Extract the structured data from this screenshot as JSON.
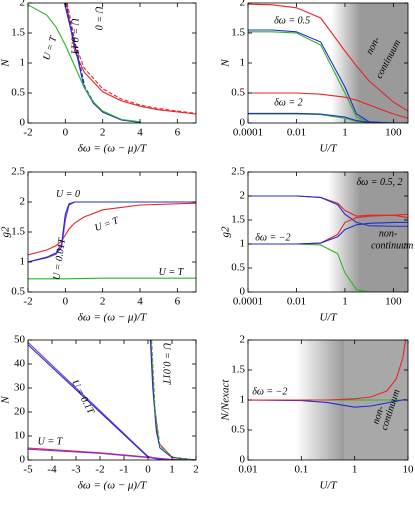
{
  "chart_data": [
    {
      "type": "line",
      "xlabel": "δω = (ω − μ)/T",
      "ylabel": "N",
      "xlim": [
        -2,
        7
      ],
      "xticks": [
        -2,
        0,
        2,
        4,
        6
      ],
      "ylim": [
        0,
        2
      ],
      "yticks": [
        0,
        0.5,
        1,
        1.5,
        2
      ],
      "annotations": [
        "U = 0",
        "U = 0.1T",
        "U = T"
      ],
      "series": [
        {
          "color": "#e8262a",
          "x": [
            0.05,
            0.5,
            1,
            2,
            3,
            4,
            5,
            7
          ],
          "values": [
            2,
            1.2,
            0.85,
            0.52,
            0.37,
            0.28,
            0.22,
            0.15
          ]
        },
        {
          "color": "#e8262a",
          "dash": true,
          "x": [
            0.1,
            0.55,
            1,
            2,
            3,
            4,
            5,
            7
          ],
          "values": [
            2,
            1.3,
            0.92,
            0.57,
            0.4,
            0.3,
            0.24,
            0.16
          ]
        },
        {
          "color": "#1f2fd0",
          "x": [
            -0.05,
            0.5,
            1,
            1.5,
            2,
            3,
            4
          ],
          "values": [
            2,
            1.3,
            0.6,
            0.33,
            0.18,
            0.05,
            0.01
          ]
        },
        {
          "color": "#1f2fd0",
          "dash": true,
          "x": [
            0,
            0.55,
            1.05,
            1.55,
            2.05,
            3.05,
            4.05
          ],
          "values": [
            2,
            1.3,
            0.6,
            0.33,
            0.18,
            0.05,
            0.01
          ]
        },
        {
          "color": "#2ab52a",
          "x": [
            -2,
            -1,
            -0.5,
            0,
            0.5,
            1,
            1.5,
            2,
            3,
            4
          ],
          "values": [
            1.97,
            1.8,
            1.6,
            1.3,
            0.95,
            0.6,
            0.35,
            0.2,
            0.06,
            0.02
          ]
        }
      ]
    },
    {
      "type": "line",
      "xlabel": "U/T",
      "ylabel": "N",
      "xscale": "log",
      "xlim": [
        0.0001,
        400
      ],
      "xticks": [
        0.0001,
        0.01,
        1,
        100
      ],
      "ylim": [
        0,
        2
      ],
      "yticks": [
        0,
        0.5,
        1,
        1.5,
        2
      ],
      "annotations": [
        "δω = 0.5",
        "δω = 2",
        "non-",
        "continuum"
      ],
      "series": [
        {
          "color": "#e8262a",
          "x": [
            0.0001,
            0.001,
            0.01,
            0.1,
            1,
            3,
            10,
            100,
            400
          ],
          "values": [
            1.98,
            1.97,
            1.92,
            1.75,
            1.2,
            0.95,
            0.7,
            0.35,
            0.2
          ]
        },
        {
          "color": "#2ab52a",
          "x": [
            0.0001,
            0.001,
            0.01,
            0.1,
            1,
            3,
            10,
            100,
            400
          ],
          "values": [
            1.52,
            1.52,
            1.5,
            1.3,
            0.5,
            0.1,
            0.01,
            0,
            0
          ]
        },
        {
          "color": "#1f2fd0",
          "x": [
            0.0001,
            0.001,
            0.01,
            0.1,
            1,
            3,
            10,
            100,
            400
          ],
          "values": [
            1.55,
            1.55,
            1.52,
            1.35,
            0.6,
            0.15,
            0.02,
            0,
            0
          ]
        },
        {
          "color": "#e8262a",
          "x": [
            0.0001,
            0.001,
            0.01,
            0.1,
            1,
            3,
            10,
            100,
            400
          ],
          "values": [
            0.5,
            0.5,
            0.5,
            0.48,
            0.43,
            0.38,
            0.3,
            0.15,
            0.08
          ]
        },
        {
          "color": "#2ab52a",
          "x": [
            0.0001,
            0.001,
            0.01,
            0.1,
            1,
            3,
            10,
            100,
            400
          ],
          "values": [
            0.15,
            0.15,
            0.15,
            0.14,
            0.08,
            0.03,
            0.005,
            0,
            0
          ]
        },
        {
          "color": "#1f2fd0",
          "x": [
            0.0001,
            0.001,
            0.01,
            0.1,
            1,
            3,
            10,
            100,
            400
          ],
          "values": [
            0.16,
            0.16,
            0.16,
            0.15,
            0.1,
            0.04,
            0.01,
            0,
            0
          ]
        }
      ]
    },
    {
      "type": "line",
      "xlabel": "δω = (ω − μ)/T",
      "ylabel": "g2",
      "xlim": [
        -2,
        7
      ],
      "xticks": [
        -2,
        0,
        2,
        4,
        6
      ],
      "ylim": [
        0.5,
        2.5
      ],
      "yticks": [
        0.5,
        1,
        1.5,
        2,
        2.5
      ],
      "annotations": [
        "U = 0",
        "U = 0.01T",
        "U = T",
        "U = T"
      ],
      "series": [
        {
          "color": "#2ab52a",
          "x": [
            -2,
            0,
            2,
            4,
            7
          ],
          "values": [
            0.72,
            0.72,
            0.73,
            0.73,
            0.73
          ]
        },
        {
          "color": "#e8262a",
          "x": [
            -2,
            -1,
            -0.5,
            -0.2,
            0,
            0.2,
            0.5,
            1,
            2,
            4,
            7
          ],
          "values": [
            1.12,
            1.2,
            1.27,
            1.35,
            1.45,
            1.55,
            1.65,
            1.75,
            1.87,
            1.95,
            1.98
          ]
        },
        {
          "color": "#8a2be2",
          "x": [
            -2,
            -1,
            -0.5,
            -0.2,
            0,
            0.2,
            0.5,
            1,
            2,
            4,
            7
          ],
          "values": [
            1,
            1.07,
            1.13,
            1.25,
            1.7,
            1.95,
            2,
            2,
            2,
            2,
            2
          ]
        },
        {
          "color": "#1f2fd0",
          "x": [
            -2,
            -1,
            -0.5,
            -0.2,
            0,
            0.2,
            0.5,
            1,
            2,
            4,
            7
          ],
          "values": [
            1,
            1.08,
            1.15,
            1.3,
            1.8,
            1.97,
            2,
            2,
            2,
            2,
            2
          ]
        }
      ]
    },
    {
      "type": "line",
      "xlabel": "U/T",
      "ylabel": "g2",
      "xscale": "log",
      "xlim": [
        0.0001,
        400
      ],
      "xticks": [
        0.0001,
        0.01,
        1,
        100
      ],
      "ylim": [
        0,
        2.5
      ],
      "yticks": [
        0,
        0.5,
        1,
        1.5,
        2,
        2.5
      ],
      "annotations": [
        "δω = 0.5, 2",
        "δω = −2",
        "non-",
        "continuum"
      ],
      "series": [
        {
          "color": "#e8262a",
          "x": [
            0.0001,
            0.001,
            0.01,
            0.1,
            0.5,
            1,
            3,
            10,
            100,
            400
          ],
          "values": [
            2,
            2,
            2,
            1.97,
            1.85,
            1.7,
            1.58,
            1.6,
            1.6,
            1.55
          ]
        },
        {
          "color": "#1f2fd0",
          "x": [
            0.0001,
            0.001,
            0.01,
            0.1,
            0.5,
            1,
            3,
            10,
            100,
            400
          ],
          "values": [
            2,
            2,
            2,
            1.97,
            1.82,
            1.62,
            1.45,
            1.38,
            1.37,
            1.37
          ]
        },
        {
          "color": "#2ab52a",
          "x": [
            0.0001,
            0.001,
            0.01,
            0.1,
            0.5,
            1,
            3,
            10,
            100,
            400
          ],
          "values": [
            1,
            1,
            1,
            0.98,
            0.8,
            0.4,
            0.05,
            0,
            0,
            0
          ]
        },
        {
          "color": "#e8262a",
          "x": [
            0.0001,
            0.001,
            0.01,
            0.1,
            0.5,
            1,
            3,
            10,
            100,
            400
          ],
          "values": [
            1,
            1,
            1,
            1.02,
            1.2,
            1.45,
            1.55,
            1.58,
            1.6,
            1.62
          ]
        },
        {
          "color": "#1f2fd0",
          "x": [
            0.0001,
            0.001,
            0.01,
            0.1,
            0.5,
            1,
            3,
            10,
            100,
            400
          ],
          "values": [
            1,
            1,
            1,
            1.02,
            1.15,
            1.3,
            1.4,
            1.43,
            1.45,
            1.45
          ]
        }
      ]
    },
    {
      "type": "line",
      "xlabel": "δω = (ω − μ)/T",
      "ylabel": "N",
      "xlim": [
        -5,
        2
      ],
      "xticks": [
        -5,
        -4,
        -3,
        -2,
        -1,
        0,
        1,
        2
      ],
      "ylim": [
        0,
        50
      ],
      "yticks": [
        0,
        10,
        20,
        30,
        40,
        50
      ],
      "annotations": [
        "U = 0.1T",
        "U = 0.01T",
        "U = T"
      ],
      "series": [
        {
          "color": "#8a2be2",
          "x": [
            -5,
            0,
            0.5,
            2
          ],
          "values": [
            49,
            1.5,
            0.3,
            0
          ]
        },
        {
          "color": "#1f2fd0",
          "x": [
            -5,
            0,
            0.5,
            2
          ],
          "values": [
            48,
            1.2,
            0.2,
            0
          ]
        },
        {
          "color": "#e8262a",
          "x": [
            -5,
            -2,
            0,
            1,
            2
          ],
          "values": [
            5,
            3,
            1.2,
            0.2,
            0
          ]
        },
        {
          "color": "#8a2be2",
          "x": [
            -5,
            -2,
            0,
            1,
            2
          ],
          "values": [
            4.5,
            2.8,
            1,
            0.15,
            0
          ]
        },
        {
          "color": "#e8262a",
          "x": [
            0.12,
            0.25,
            0.45,
            1,
            2
          ],
          "values": [
            50,
            25,
            7,
            1.2,
            0
          ]
        },
        {
          "color": "#1f2fd0",
          "x": [
            0.1,
            0.2,
            0.35,
            0.5,
            1,
            2
          ],
          "values": [
            50,
            30,
            12,
            5,
            1,
            0
          ]
        },
        {
          "color": "#2ab52a",
          "dash": true,
          "x": [
            0.15,
            0.3,
            0.5,
            1,
            2
          ],
          "values": [
            50,
            20,
            6,
            1,
            0
          ]
        }
      ]
    },
    {
      "type": "line",
      "xlabel": "U/T",
      "ylabel": "N/Nexact",
      "xscale": "log",
      "xlim": [
        0.01,
        10
      ],
      "xticks": [
        0.01,
        0.1,
        1,
        10
      ],
      "ylim": [
        0,
        2
      ],
      "yticks": [
        0,
        0.5,
        1,
        1.5,
        2
      ],
      "annotations": [
        "δω = −2",
        "non-",
        "continuum"
      ],
      "series": [
        {
          "color": "#2ab52a",
          "x": [
            0.01,
            0.1,
            1,
            10
          ],
          "values": [
            1,
            1,
            1,
            1
          ]
        },
        {
          "color": "#1f2fd0",
          "x": [
            0.01,
            0.1,
            0.3,
            1,
            2,
            4,
            6,
            8,
            9
          ],
          "values": [
            1,
            0.99,
            0.96,
            0.88,
            0.9,
            0.95,
            0.98,
            1,
            1.01
          ]
        },
        {
          "color": "#e8262a",
          "x": [
            0.01,
            0.1,
            0.3,
            1,
            2,
            4,
            6,
            8,
            9
          ],
          "values": [
            1,
            1,
            1,
            1.02,
            1.05,
            1.15,
            1.35,
            1.7,
            2
          ]
        }
      ]
    }
  ]
}
